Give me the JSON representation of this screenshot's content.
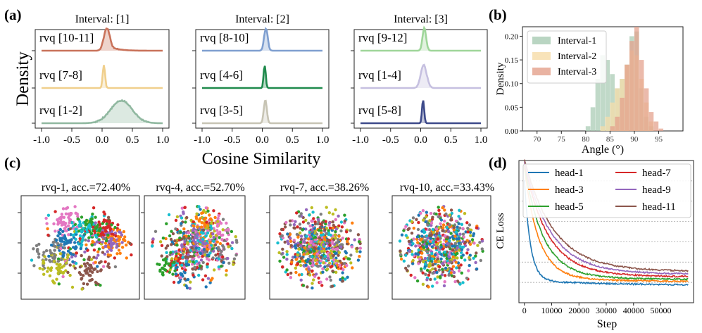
{
  "panels": {
    "a": "(a)",
    "b": "(b)",
    "c": "(c)",
    "d": "(d)"
  },
  "chart_data": [
    {
      "id": "a",
      "type": "area",
      "ylabel": "Density",
      "xlabel": "Cosine Similarity",
      "xticks": [
        "-1.0",
        "-0.5",
        "0.0",
        "0.5",
        "1.0"
      ],
      "xlim": [
        -1.0,
        1.0
      ],
      "subplots": [
        {
          "title": "Interval: [1]",
          "series": [
            {
              "name": "rvq [10-11]",
              "color": "#c9725a",
              "mu": 0.08,
              "sigma": 0.05,
              "tail": 0.35
            },
            {
              "name": "rvq [7-8]",
              "color": "#f0cf8c",
              "mu": 0.03,
              "sigma": 0.02,
              "tail": 0.0
            },
            {
              "name": "rvq [1-2]",
              "color": "#90b8a0",
              "mu": 0.32,
              "sigma": 0.18,
              "tail": 0.0
            }
          ]
        },
        {
          "title": "Interval: [2]",
          "series": [
            {
              "name": "rvq [8-10]",
              "color": "#7f9fd0",
              "mu": 0.06,
              "sigma": 0.03,
              "tail": 0.0
            },
            {
              "name": "rvq [4-6]",
              "color": "#1f8a4c",
              "mu": 0.04,
              "sigma": 0.018,
              "tail": 0.0
            },
            {
              "name": "rvq [3-5]",
              "color": "#c7c4b4",
              "mu": 0.05,
              "sigma": 0.025,
              "tail": 0.0
            }
          ]
        },
        {
          "title": "Interval: [3]",
          "series": [
            {
              "name": "rvq [9-12]",
              "color": "#9fd69a",
              "mu": 0.06,
              "sigma": 0.03,
              "tail": 0.0
            },
            {
              "name": "rvq [1-4]",
              "color": "#c6c0e0",
              "mu": 0.05,
              "sigma": 0.05,
              "tail": 0.0
            },
            {
              "name": "rvq [5-8]",
              "color": "#3d4a8a",
              "mu": 0.04,
              "sigma": 0.018,
              "tail": 0.0
            }
          ]
        }
      ]
    },
    {
      "id": "b",
      "type": "bar",
      "ylabel": "Density",
      "xlabel": "Angle (°)",
      "xlim": [
        67,
        100
      ],
      "ylim": [
        0,
        0.22
      ],
      "xticks": [
        "70",
        "75",
        "80",
        "85",
        "90",
        "95"
      ],
      "yticks": [
        "0.00",
        "0.05",
        "0.10",
        "0.15",
        "0.20"
      ],
      "bin_width": 1,
      "series": [
        {
          "name": "Interval-1",
          "color": "#a8cbb3",
          "bins": [
            80,
            81,
            82,
            83,
            84,
            85,
            86,
            87,
            88,
            89,
            90,
            91,
            92,
            93
          ],
          "values": [
            0.01,
            0.05,
            0.11,
            0.16,
            0.15,
            0.12,
            0.09,
            0.11,
            0.14,
            0.2,
            0.21,
            0.09,
            0.03,
            0.01
          ]
        },
        {
          "name": "Interval-2",
          "color": "#f6dca8",
          "bins": [
            83,
            84,
            85,
            86,
            87,
            88,
            89,
            90,
            91,
            92,
            93
          ],
          "values": [
            0.01,
            0.03,
            0.06,
            0.09,
            0.11,
            0.14,
            0.17,
            0.16,
            0.11,
            0.06,
            0.02
          ]
        },
        {
          "name": "Interval-3",
          "color": "#e3a08b",
          "bins": [
            85,
            86,
            87,
            88,
            89,
            90,
            91,
            92,
            93,
            94,
            95
          ],
          "values": [
            0.01,
            0.03,
            0.07,
            0.14,
            0.19,
            0.22,
            0.15,
            0.09,
            0.04,
            0.02,
            0.005
          ]
        }
      ]
    },
    {
      "id": "c",
      "type": "scatter",
      "subplots": [
        {
          "title": "rvq-1, acc.=72.40%"
        },
        {
          "title": "rvq-4, acc.=52.70%"
        },
        {
          "title": "rvq-7, acc.=38.26%"
        },
        {
          "title": "rvq-10, acc.=33.43%"
        }
      ],
      "cluster_strength": [
        0.85,
        0.45,
        0.15,
        0.05
      ],
      "palette": [
        "#1f77b4",
        "#ff7f0e",
        "#2ca02c",
        "#d62728",
        "#9467bd",
        "#8c564b",
        "#e377c2",
        "#7f7f7f",
        "#bcbd22",
        "#17becf"
      ]
    },
    {
      "id": "d",
      "type": "line",
      "ylabel": "CE Loss",
      "xlabel": "Step",
      "xlim": [
        -2000,
        62000
      ],
      "ylim": [
        0,
        7
      ],
      "xticks": [
        "0",
        "10000",
        "20000",
        "30000",
        "40000",
        "50000"
      ],
      "grid": true,
      "legend": "top-right",
      "series": [
        {
          "name": "head-1",
          "color": "#1f77b4",
          "start": 5.8,
          "end": 0.85,
          "tau": 2200
        },
        {
          "name": "head-3",
          "color": "#ff7f0e",
          "start": 6.4,
          "end": 1.02,
          "tau": 5200
        },
        {
          "name": "head-5",
          "color": "#2ca02c",
          "start": 6.5,
          "end": 1.12,
          "tau": 6800
        },
        {
          "name": "head-7",
          "color": "#d62728",
          "start": 6.6,
          "end": 1.25,
          "tau": 8500
        },
        {
          "name": "head-9",
          "color": "#9467bd",
          "start": 6.7,
          "end": 1.38,
          "tau": 9500
        },
        {
          "name": "head-11",
          "color": "#8c564b",
          "start": 6.8,
          "end": 1.52,
          "tau": 10500
        }
      ]
    }
  ]
}
